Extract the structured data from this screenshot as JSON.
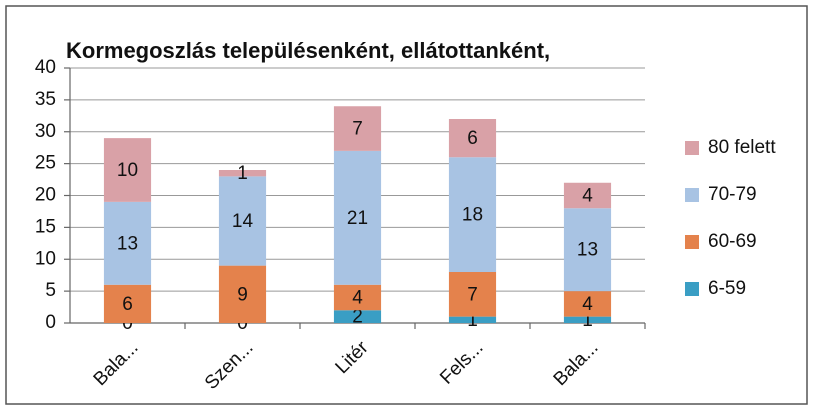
{
  "chart_data": {
    "type": "bar",
    "stacked": true,
    "title": "Kormegoszlás településenként, ellátottanként,",
    "categories": [
      "Bala...",
      "Szen...",
      "Litér",
      "Fels...",
      "Bala..."
    ],
    "series": [
      {
        "name": "6-59",
        "color": "#3a9ec4",
        "values": [
          0,
          0,
          2,
          1,
          1
        ]
      },
      {
        "name": "60-69",
        "color": "#e4824c",
        "values": [
          6,
          9,
          4,
          7,
          4
        ]
      },
      {
        "name": "70-79",
        "color": "#a8c3e3",
        "values": [
          13,
          14,
          21,
          18,
          13
        ]
      },
      {
        "name": "80 felett",
        "color": "#d9a1a7",
        "values": [
          10,
          1,
          7,
          6,
          4
        ]
      }
    ],
    "ylim": [
      0,
      40
    ],
    "yticks": [
      0,
      5,
      10,
      15,
      20,
      25,
      30,
      35,
      40
    ],
    "grid": true,
    "legend": "right"
  }
}
